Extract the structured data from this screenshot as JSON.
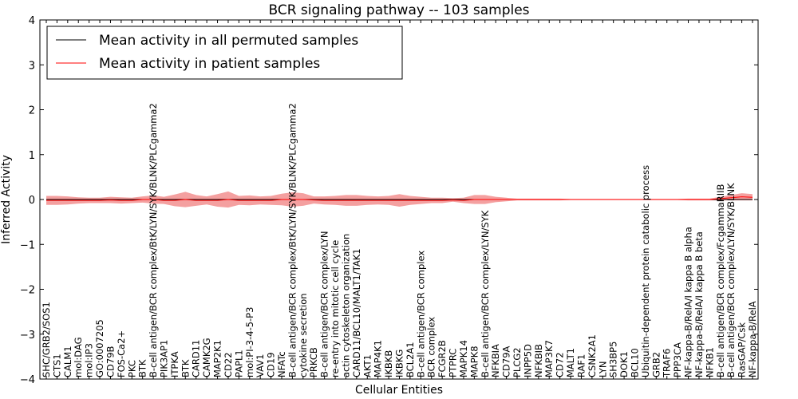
{
  "chart_data": {
    "type": "line",
    "title": "BCR signaling pathway -- 103 samples",
    "xlabel": "Cellular Entities",
    "ylabel": "Inferred Activity",
    "ylim": [
      -4,
      4
    ],
    "yticks": [
      "−4",
      "−3",
      "−2",
      "−1",
      "0",
      "1",
      "2",
      "3",
      "4"
    ],
    "ytick_values": [
      -4,
      -3,
      -2,
      -1,
      0,
      1,
      2,
      3,
      4
    ],
    "grid": false,
    "legend_position": "top-left",
    "categories": [
      "SHC/GRB2/SOS1",
      "CTS1",
      "CALM1",
      "mol:DAG",
      "mol:IP3",
      "GO:0007205",
      "CD79B",
      "FOS-Ca2+",
      "PKC",
      "BTK",
      "B-cell antigen/BCR complex/BtK/LYN/SYK/BLNK/PLCgamma2",
      "PIK3AP1",
      "ITPKA",
      "BTK",
      "CARD11",
      "CAMK2G",
      "MAP2K1",
      "CD22",
      "PAPL1",
      "mol:PI-3-4-5-P3",
      "VAV1",
      "CD19",
      "NFATc",
      "B-cell antigen/BCR complex/BtK/LYN/SYK/BLNK/PLCgamma2",
      "cytokine secretion",
      "PRKCB",
      "B-cell antigen/BCR complex/LYN",
      "re-entry into mitotic cell cycle",
      "actin cytoskeleton organization",
      "CARD11/BCL10/MALT1/TAK1",
      "AKT1",
      "MAP4K1",
      "IKBKB",
      "IKBKG",
      "BCL2A1",
      "B-cell antigen/BCR complex",
      "BCR complex",
      "FCGR2B",
      "PTPRC",
      "MAPK14",
      "MAPK8",
      "B-cell antigen/BCR complex/LYN/SYK",
      "NFKBIA",
      "CD79A",
      "PLCG2",
      "INPP5D",
      "NFKBIB",
      "MAP3K7",
      "CD72",
      "MALT1",
      "RAF1",
      "CSNK2A1",
      "LYN",
      "SH3BP5",
      "DOK1",
      "BCL10",
      "Ubiquitin-dependent protein catabolic process",
      "GRB2",
      "TRAF6",
      "PPP3CA",
      "NF-kappa-B/RelA/I kappa B alpha",
      "NF-kappa-B/RelA/I kappa B beta",
      "NFKB1",
      "B-cell antigen/BCR complex/FcgammaRIIB",
      "B-cell antigen/BCR complex/LYN/SYK/BLNK",
      "RasGAP/Csk",
      "NF-kappa-B/RelA"
    ],
    "series": [
      {
        "name": "Mean activity in all permuted samples",
        "color": "#000000",
        "values": [
          0.0,
          0.0,
          0.0,
          0.0,
          0.0,
          0.0,
          0.0,
          0.0,
          0.0,
          0.0,
          0.0,
          0.0,
          0.0,
          0.0,
          0.0,
          0.0,
          0.0,
          0.0,
          0.0,
          0.0,
          0.0,
          0.0,
          0.0,
          0.0,
          0.0,
          0.0,
          0.0,
          0.0,
          0.0,
          0.0,
          0.0,
          0.0,
          0.0,
          0.0,
          0.0,
          0.0,
          0.0,
          0.0,
          0.0,
          0.0,
          0.0,
          0.0,
          0.0,
          0.0,
          0.0,
          0.0,
          0.0,
          0.0,
          0.0,
          0.0,
          0.0,
          0.0,
          0.0,
          0.0,
          0.0,
          0.0,
          0.0,
          0.0,
          0.0,
          0.0,
          0.0,
          0.0,
          0.0,
          0.0,
          0.0,
          0.0,
          0.0
        ]
      },
      {
        "name": "Mean activity in patient samples",
        "color": "#ff0000",
        "values": [
          -0.02,
          -0.02,
          -0.02,
          -0.02,
          -0.02,
          -0.02,
          -0.01,
          -0.02,
          -0.02,
          0.0,
          0.0,
          -0.02,
          -0.02,
          0.0,
          -0.02,
          -0.02,
          -0.02,
          0.0,
          -0.02,
          -0.02,
          -0.02,
          -0.02,
          0.0,
          0.0,
          0.0,
          -0.01,
          -0.02,
          -0.02,
          -0.02,
          -0.02,
          -0.02,
          -0.02,
          -0.02,
          -0.02,
          -0.02,
          -0.02,
          -0.02,
          -0.02,
          -0.01,
          -0.02,
          0.0,
          0.0,
          0.0,
          0.0,
          0.0,
          0.0,
          0.0,
          0.0,
          0.0,
          0.0,
          0.0,
          0.0,
          0.0,
          0.0,
          0.0,
          0.0,
          0.0,
          0.0,
          0.0,
          0.0,
          0.0,
          0.0,
          0.0,
          0.02,
          0.04,
          0.06,
          0.05
        ],
        "band_halfwidth": [
          0.1,
          0.1,
          0.09,
          0.07,
          0.06,
          0.06,
          0.07,
          0.07,
          0.06,
          0.07,
          0.09,
          0.08,
          0.13,
          0.17,
          0.12,
          0.09,
          0.14,
          0.18,
          0.1,
          0.11,
          0.09,
          0.1,
          0.13,
          0.16,
          0.14,
          0.08,
          0.09,
          0.1,
          0.12,
          0.12,
          0.1,
          0.09,
          0.1,
          0.14,
          0.1,
          0.08,
          0.06,
          0.06,
          0.04,
          0.06,
          0.1,
          0.1,
          0.06,
          0.04,
          0.02,
          0.02,
          0.02,
          0.02,
          0.02,
          0.01,
          0.01,
          0.01,
          0.01,
          0.01,
          0.01,
          0.01,
          0.01,
          0.01,
          0.01,
          0.01,
          0.02,
          0.02,
          0.02,
          0.04,
          0.06,
          0.08,
          0.07
        ]
      }
    ]
  }
}
